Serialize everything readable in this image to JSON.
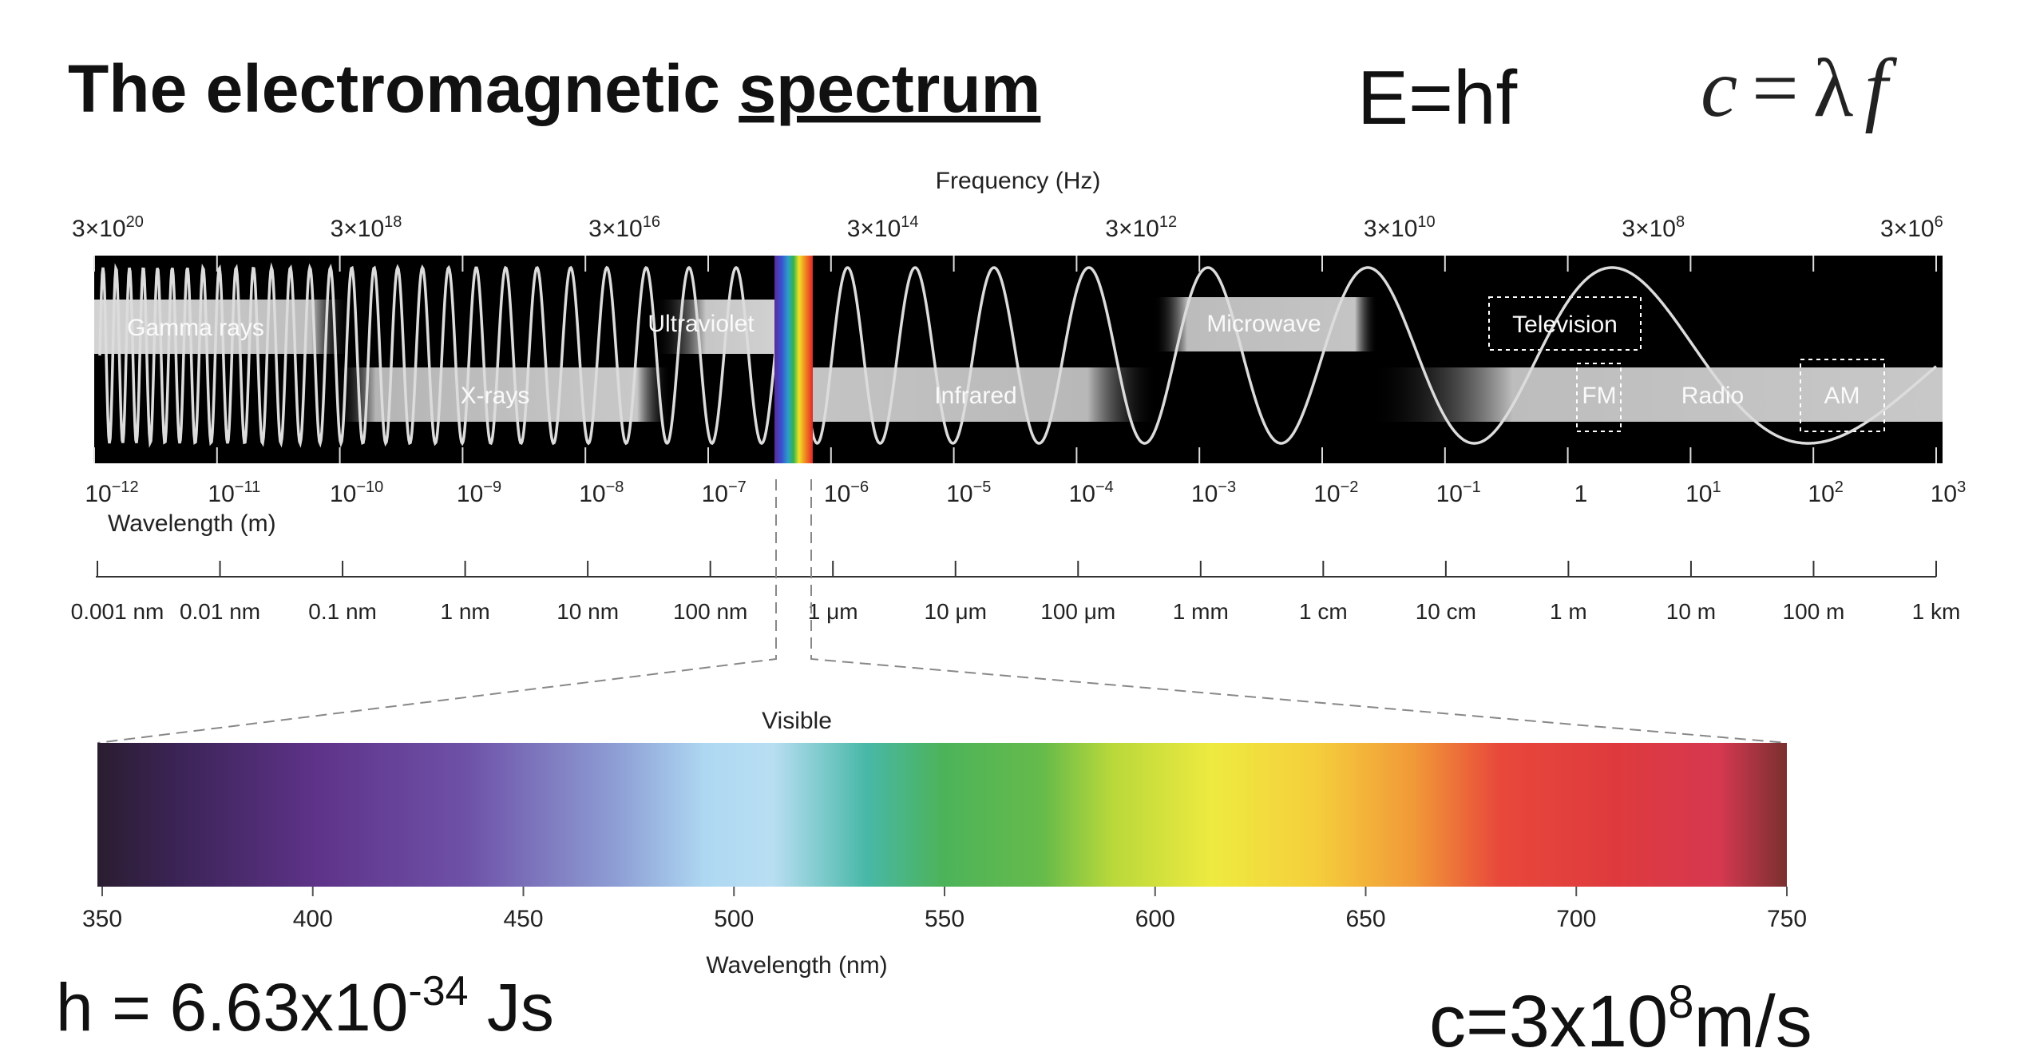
{
  "title": {
    "text": "The electromagnetic ",
    "underlined": "spectrum"
  },
  "equations": {
    "planck": "E=hf",
    "wave_c": "c",
    "wave_eq": "=",
    "wave_lambda": "λ",
    "wave_f": "f",
    "h_prefix": "h = 6.63x10",
    "h_exp": "-34",
    "h_suffix": " Js",
    "c_prefix": "c=3x10",
    "c_exp": "8",
    "c_suffix": "m/s"
  },
  "frequency_axis": {
    "label": "Frequency (Hz)",
    "ticks": [
      {
        "base": "3×10",
        "exp": "20"
      },
      {
        "base": "3×10",
        "exp": "18"
      },
      {
        "base": "3×10",
        "exp": "16"
      },
      {
        "base": "3×10",
        "exp": "14"
      },
      {
        "base": "3×10",
        "exp": "12"
      },
      {
        "base": "3×10",
        "exp": "10"
      },
      {
        "base": "3×10",
        "exp": "8"
      },
      {
        "base": "3×10",
        "exp": "6"
      }
    ]
  },
  "wavelength_axis": {
    "label": "Wavelength (m)",
    "ticks": [
      {
        "base": "10",
        "exp": "−12"
      },
      {
        "base": "10",
        "exp": "−11"
      },
      {
        "base": "10",
        "exp": "−10"
      },
      {
        "base": "10",
        "exp": "−9"
      },
      {
        "base": "10",
        "exp": "−8"
      },
      {
        "base": "10",
        "exp": "−7"
      },
      {
        "base": "10",
        "exp": "−6"
      },
      {
        "base": "10",
        "exp": "−5"
      },
      {
        "base": "10",
        "exp": "−4"
      },
      {
        "base": "10",
        "exp": "−3"
      },
      {
        "base": "10",
        "exp": "−2"
      },
      {
        "base": "10",
        "exp": "−1"
      },
      {
        "base": "1",
        "exp": ""
      },
      {
        "base": "10",
        "exp": "1"
      },
      {
        "base": "10",
        "exp": "2"
      },
      {
        "base": "10",
        "exp": "3"
      }
    ]
  },
  "unit_axis": {
    "ticks": [
      "0.001 nm",
      "0.01 nm",
      "0.1 nm",
      "1 nm",
      "10 nm",
      "100 nm",
      "1 μm",
      "10 μm",
      "100 μm",
      "1 mm",
      "1 cm",
      "10 cm",
      "1 m",
      "10 m",
      "100 m",
      "1 km"
    ]
  },
  "bands": {
    "gamma": "Gamma rays",
    "xrays": "X-rays",
    "uv": "Ultraviolet",
    "infrared": "Infrared",
    "microwave": "Microwave",
    "television": "Television",
    "fm": "FM",
    "radio": "Radio",
    "am": "AM"
  },
  "visible": {
    "label": "Visible",
    "axis_label": "Wavelength (nm)",
    "ticks": [
      350,
      400,
      450,
      500,
      550,
      600,
      650,
      700,
      750
    ],
    "range_nm": [
      350,
      750
    ]
  },
  "colors": {
    "band_bg": "#000000",
    "band_fill": "#c8c8c8",
    "wave": "#d8d8d8",
    "text": "#222222"
  }
}
